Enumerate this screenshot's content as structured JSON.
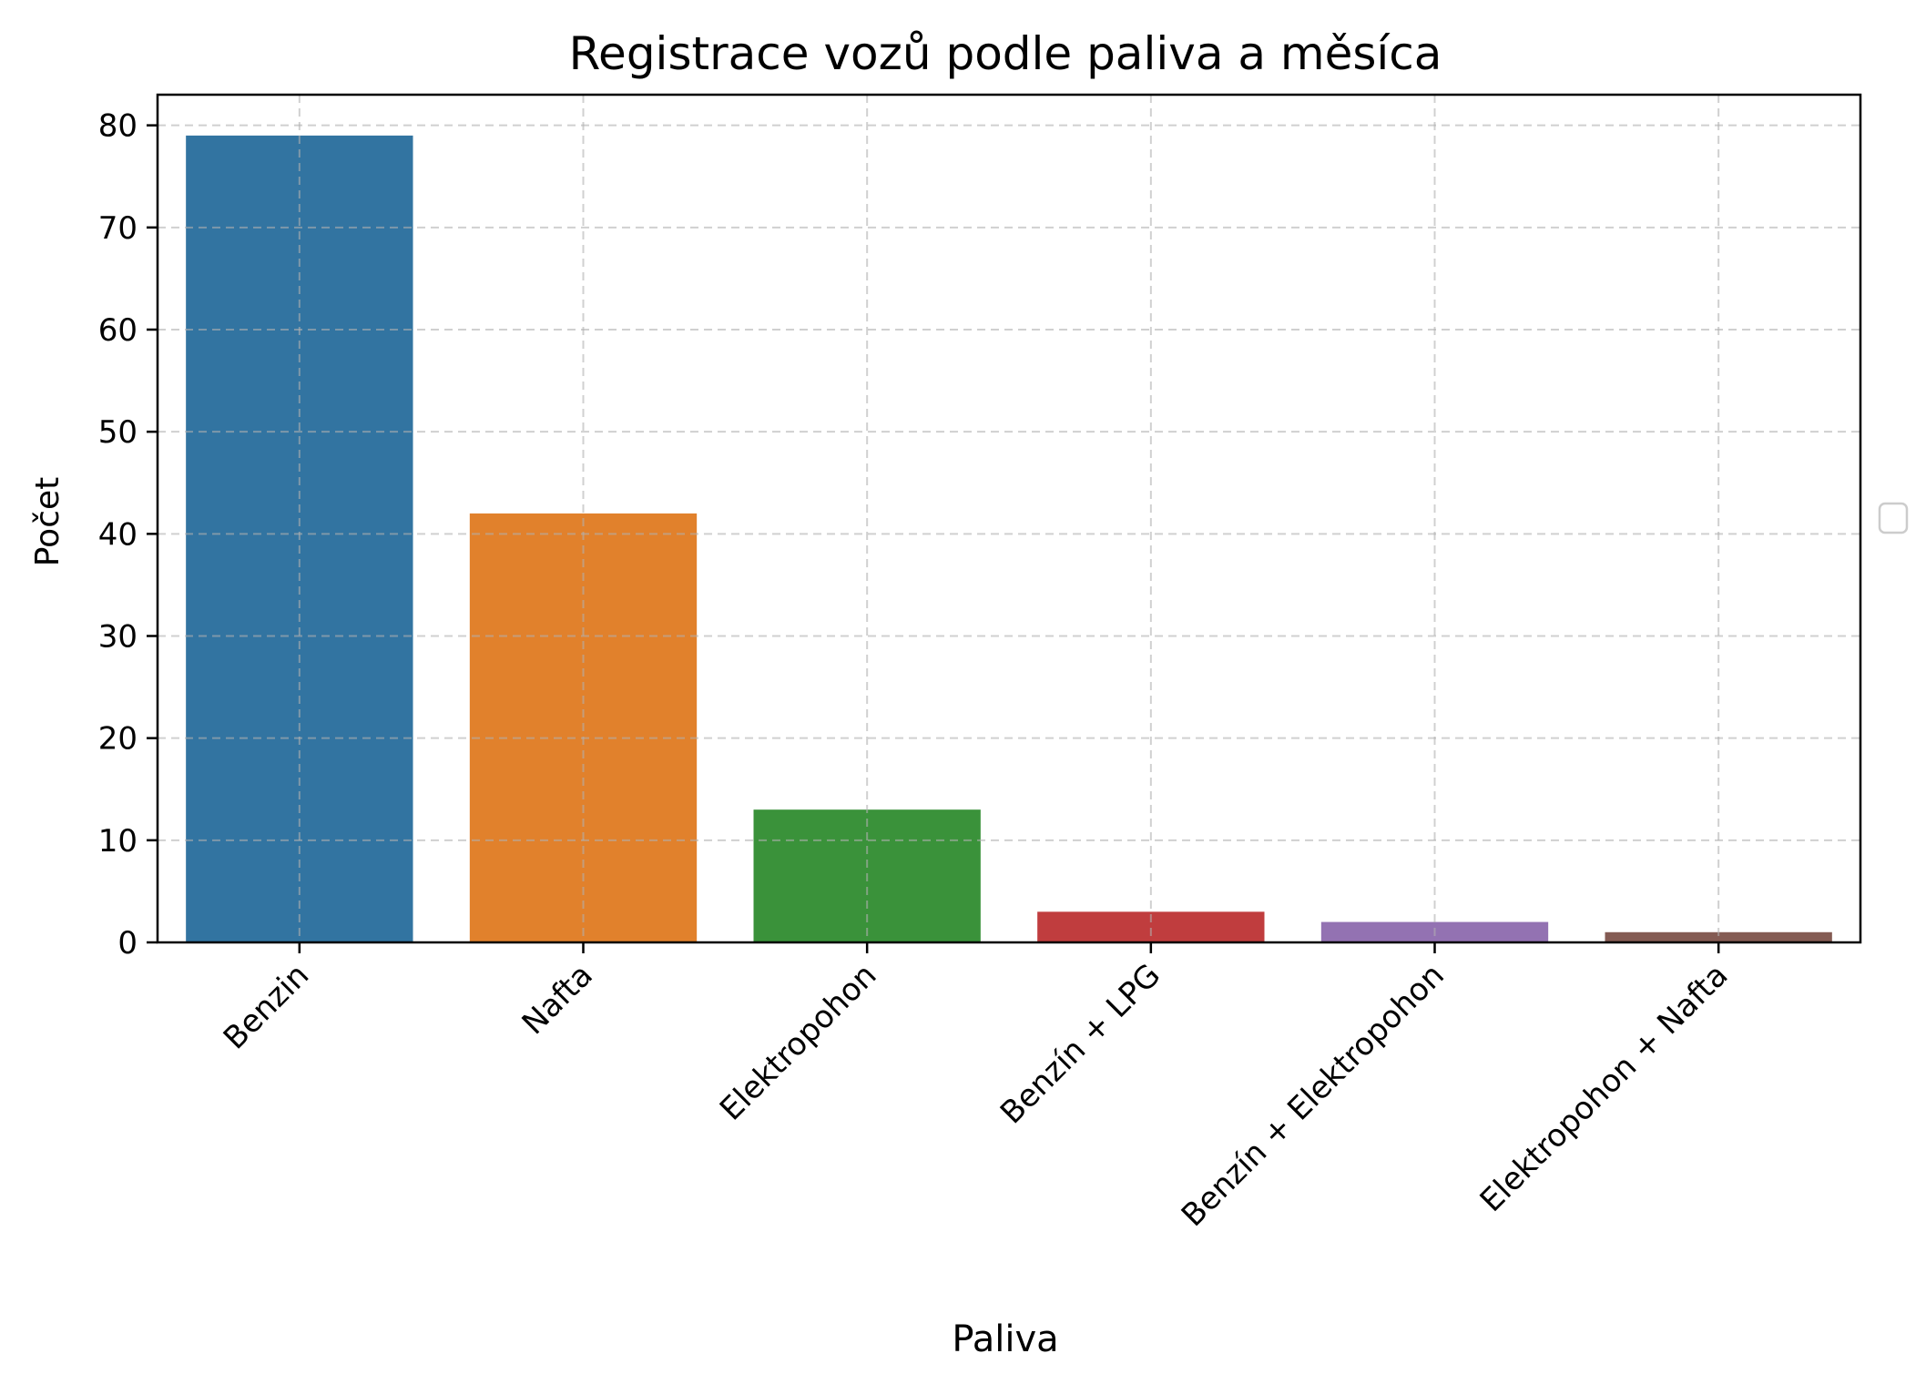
{
  "chart_data": {
    "type": "bar",
    "title": "Registrace vozů podle paliva a měsíca",
    "xlabel": "Paliva",
    "ylabel": "Počet",
    "categories": [
      "Benzin",
      "Nafta",
      "Elektropohon",
      "Benzín + LPG",
      "Benzín + Elektropohon",
      "Elektropohon + Nafta"
    ],
    "values": [
      79,
      42,
      13,
      3,
      2,
      1
    ],
    "colors": [
      "#3274a1",
      "#e1812c",
      "#3a923a",
      "#c03d3e",
      "#9372b2",
      "#845b53"
    ],
    "ylim": [
      0,
      83
    ],
    "yticks": [
      0,
      10,
      20,
      30,
      40,
      50,
      60,
      70,
      80
    ],
    "grid": true,
    "legend": "empty legend box, right-center"
  }
}
